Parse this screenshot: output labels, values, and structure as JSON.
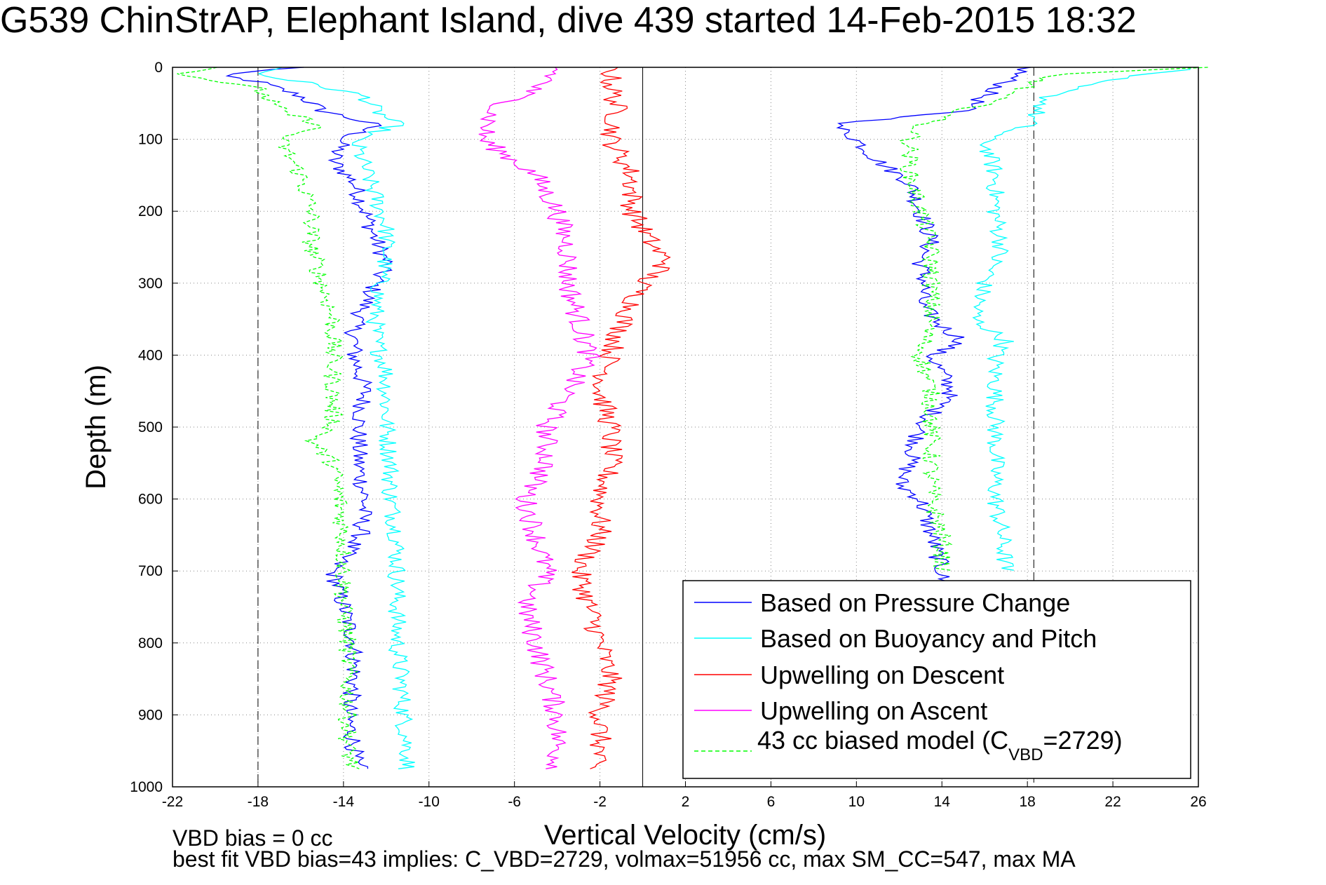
{
  "chart_data": {
    "type": "line",
    "title": "G539 ChinStrAP, Elephant Island, dive 439 started 14-Feb-2015 18:32",
    "xlabel": "Vertical Velocity (cm/s)",
    "ylabel": "Depth (m)",
    "xlim": [
      -22,
      26
    ],
    "ylim": [
      0,
      1000
    ],
    "y_reversed": true,
    "grid": true,
    "xticks": [
      "-22",
      "-18",
      "-14",
      "-10",
      "-6",
      "-2",
      "2",
      "6",
      "10",
      "14",
      "18",
      "22",
      "26"
    ],
    "yticks": [
      "0",
      "100",
      "200",
      "300",
      "400",
      "500",
      "600",
      "700",
      "800",
      "900",
      "1000"
    ],
    "reference_lines": {
      "dashed_x": [
        -18,
        18.3
      ],
      "solid_x": [
        0
      ]
    },
    "legend_position": "bottom-right",
    "legend": [
      {
        "label": "Based on Pressure Change",
        "color": "#0000ff",
        "style": "solid"
      },
      {
        "label": "Based on Buoyancy and Pitch",
        "color": "#00ffff",
        "style": "solid"
      },
      {
        "label": "Upwelling on Descent",
        "color": "#ff0000",
        "style": "solid"
      },
      {
        "label": "Upwelling on Ascent",
        "color": "#ff00ff",
        "style": "solid"
      },
      {
        "label_pre": "43 cc biased model (C",
        "label_sub": "VBD",
        "label_post": "=2729)",
        "color": "#00ff00",
        "style": "dashed"
      }
    ],
    "series": [
      {
        "name": "Based on Pressure Change",
        "color": "#0000ff",
        "branch": "descent",
        "depth": [
          0,
          10,
          20,
          40,
          60,
          80,
          100,
          130,
          160,
          200,
          240,
          270,
          300,
          330,
          360,
          400,
          450,
          500,
          550,
          600,
          650,
          700,
          750,
          800,
          850,
          900,
          940,
          970,
          975
        ],
        "velocity": [
          -16,
          -20,
          -18,
          -16,
          -15,
          -12.5,
          -14,
          -14.5,
          -13.5,
          -13,
          -12.5,
          -12,
          -12.5,
          -13,
          -13.5,
          -13.5,
          -13,
          -13.3,
          -13.3,
          -13,
          -13.2,
          -14.5,
          -14,
          -13.5,
          -13.5,
          -13.8,
          -13.5,
          -13.5,
          -13
        ]
      },
      {
        "name": "Based on Pressure Change",
        "color": "#0000ff",
        "branch": "ascent",
        "depth": [
          0,
          20,
          40,
          60,
          80,
          100,
          130,
          160,
          200,
          240,
          270,
          300,
          330,
          360,
          380,
          400,
          450,
          500,
          550,
          580,
          600,
          650,
          700,
          720
        ],
        "velocity": [
          18,
          17,
          16,
          15,
          9,
          10,
          11,
          12.5,
          13,
          13.5,
          13,
          13.2,
          13,
          14,
          15,
          13.5,
          14.5,
          13,
          12.5,
          12,
          13,
          13.5,
          14,
          14
        ]
      },
      {
        "name": "Based on Buoyancy and Pitch",
        "color": "#00ffff",
        "branch": "descent",
        "depth": [
          0,
          10,
          20,
          40,
          60,
          80,
          100,
          140,
          180,
          220,
          260,
          300,
          340,
          380,
          420,
          460,
          500,
          550,
          600,
          650,
          700,
          750,
          800,
          850,
          900,
          950,
          975
        ],
        "velocity": [
          -17,
          -18,
          -16,
          -13,
          -12.5,
          -11.5,
          -13.5,
          -13,
          -12.5,
          -12,
          -12,
          -12.3,
          -12.5,
          -12.5,
          -12,
          -12,
          -12,
          -11.8,
          -11.8,
          -11.5,
          -11.5,
          -11.5,
          -11.5,
          -11.3,
          -11.2,
          -11,
          -11
        ]
      },
      {
        "name": "Based on Buoyancy and Pitch",
        "color": "#00ffff",
        "branch": "ascent",
        "depth": [
          0,
          20,
          40,
          60,
          80,
          100,
          150,
          200,
          250,
          300,
          350,
          380,
          400,
          450,
          500,
          550,
          600,
          650,
          700
        ],
        "velocity": [
          26,
          21,
          19,
          18.5,
          18,
          16,
          16.5,
          16.5,
          16.8,
          16,
          15.5,
          17,
          16.5,
          16.5,
          16.5,
          16.5,
          16.5,
          16.8,
          17
        ]
      },
      {
        "name": "Upwelling on Descent",
        "color": "#ff0000",
        "depth": [
          0,
          20,
          60,
          100,
          150,
          200,
          250,
          270,
          300,
          330,
          360,
          400,
          450,
          500,
          550,
          600,
          650,
          700,
          750,
          800,
          850,
          900,
          950,
          975
        ],
        "velocity": [
          -1.5,
          -1.5,
          -1.2,
          -1.5,
          -0.5,
          -0.5,
          0.5,
          1.2,
          0,
          -0.5,
          -1,
          -1.5,
          -2,
          -1.5,
          -1.5,
          -2,
          -2,
          -3,
          -2.5,
          -2,
          -1.5,
          -2,
          -2,
          -2.5
        ]
      },
      {
        "name": "Upwelling on Ascent",
        "color": "#ff00ff",
        "depth": [
          0,
          20,
          60,
          100,
          150,
          200,
          250,
          300,
          350,
          400,
          450,
          500,
          550,
          600,
          650,
          700,
          750,
          800,
          850,
          900,
          950,
          975
        ],
        "velocity": [
          -4,
          -4.5,
          -7,
          -7.5,
          -5,
          -4,
          -3.5,
          -3.5,
          -3,
          -2.5,
          -3.5,
          -4.5,
          -4.5,
          -5.5,
          -5,
          -4.5,
          -5.5,
          -5,
          -4.5,
          -4,
          -4,
          -4
        ]
      },
      {
        "name": "43 cc biased model (CVBD=2729)",
        "color": "#00ff00",
        "style": "dashed",
        "branch": "descent",
        "depth": [
          0,
          10,
          30,
          60,
          80,
          100,
          150,
          200,
          250,
          300,
          350,
          400,
          450,
          500,
          520,
          550,
          600,
          650,
          700,
          750,
          800,
          850,
          900,
          950,
          975
        ],
        "velocity": [
          -20,
          -21.5,
          -18,
          -17,
          -15,
          -17,
          -16,
          -15.5,
          -15.5,
          -15,
          -14.5,
          -14.5,
          -14.5,
          -14.5,
          -15.5,
          -14.5,
          -14.2,
          -14,
          -14,
          -14,
          -13.8,
          -13.8,
          -13.8,
          -13.8,
          -13.5
        ]
      },
      {
        "name": "43 cc biased model (CVBD=2729)",
        "color": "#00ff00",
        "style": "dashed",
        "branch": "ascent",
        "depth": [
          0,
          10,
          20,
          50,
          80,
          100,
          150,
          200,
          250,
          300,
          350,
          400,
          450,
          500,
          550,
          600,
          650,
          700
        ],
        "velocity": [
          26,
          19,
          18.5,
          16,
          13,
          12.5,
          12.5,
          13,
          13.5,
          13.5,
          13.5,
          13,
          13.5,
          13.5,
          13.5,
          13.5,
          14,
          14
        ]
      }
    ]
  },
  "footer": {
    "line1": "VBD bias = 0 cc",
    "line2": "best fit VBD bias=43 implies: C_VBD=2729, volmax=51956 cc, max SM_CC=547, max MA"
  }
}
